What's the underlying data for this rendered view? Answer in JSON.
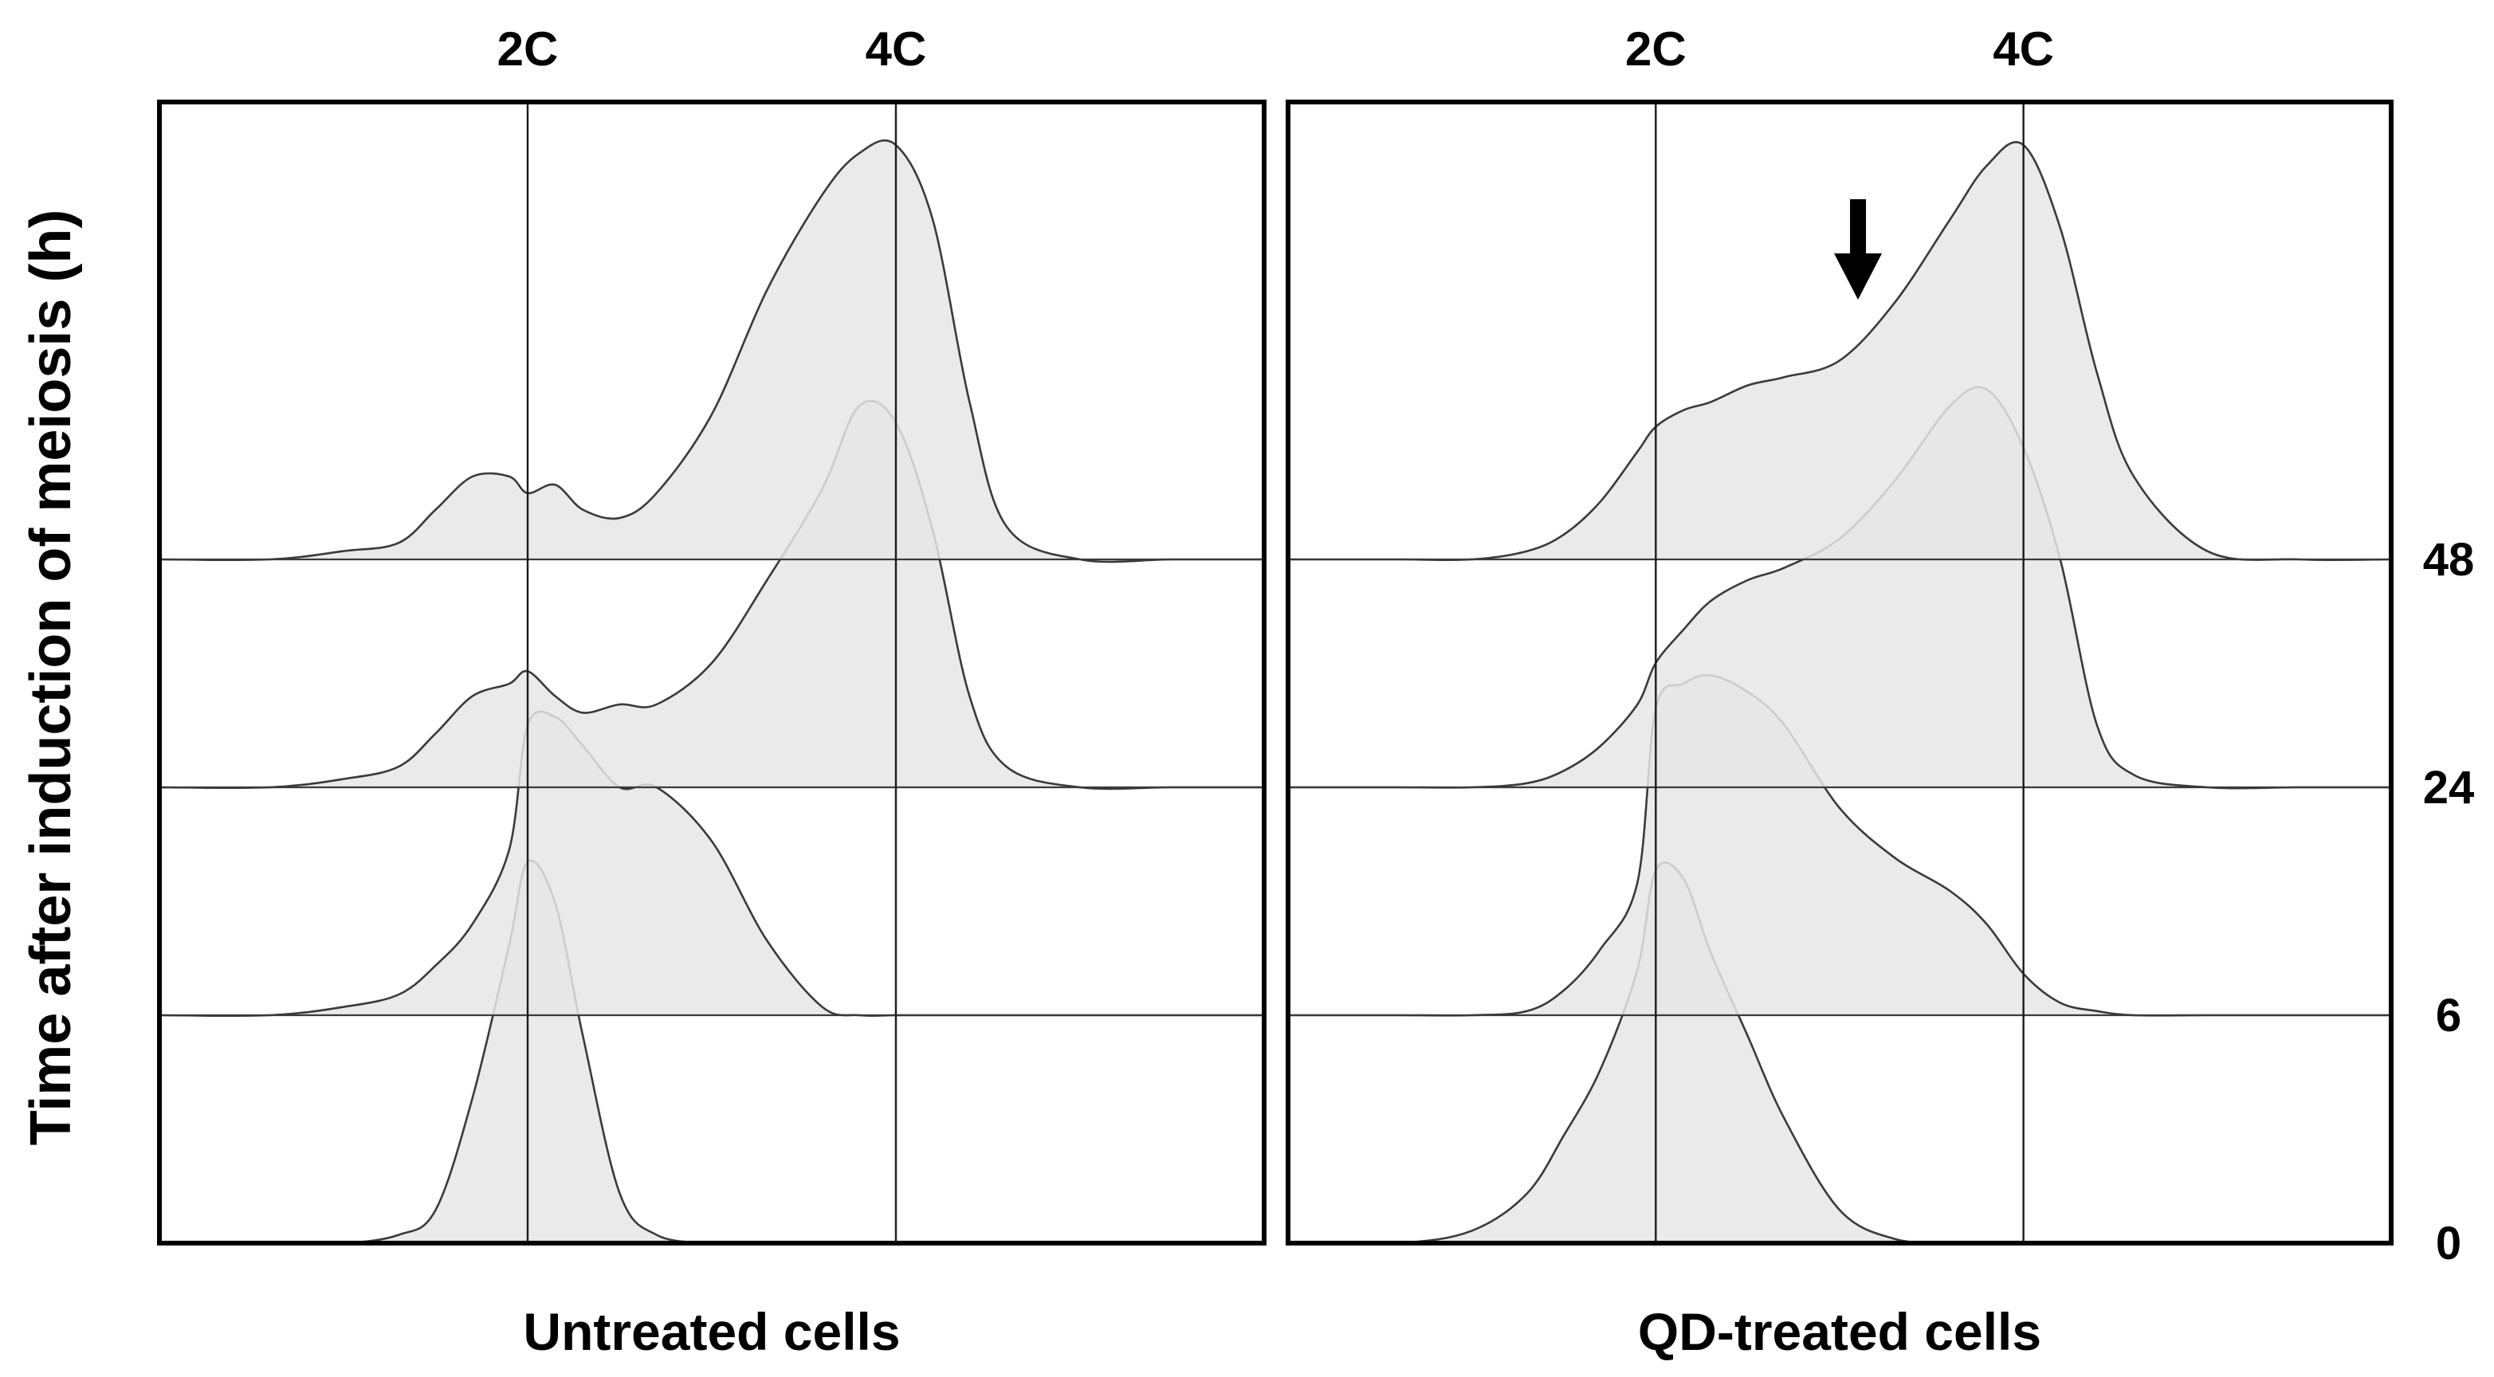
{
  "figure": {
    "y_axis_label": "Time after induction of meiosis (h)",
    "time_labels": [
      "48",
      "24",
      "6",
      "0"
    ],
    "arrow_icon": "down-arrow-icon",
    "fill_color": "#e6e6e6",
    "line_color": "#3a3a3a"
  },
  "chart_data": [
    {
      "type": "area",
      "title": "Untreated cells",
      "xlabel": "Untreated cells",
      "ylabel": "Time after induction of meiosis (h)",
      "reference_lines": [
        {
          "label": "2C",
          "x": 2
        },
        {
          "label": "4C",
          "x": 4
        }
      ],
      "series": [
        {
          "name": "48",
          "x": [
            0,
            0.6,
            1.0,
            1.3,
            1.5,
            1.7,
            1.9,
            2.0,
            2.15,
            2.3,
            2.5,
            2.7,
            3.0,
            3.3,
            3.6,
            3.8,
            4.0,
            4.2,
            4.4,
            4.6,
            5.0,
            5.5,
            6.0
          ],
          "values": [
            0,
            0,
            0.02,
            0.04,
            0.12,
            0.2,
            0.2,
            0.16,
            0.18,
            0.12,
            0.1,
            0.16,
            0.35,
            0.65,
            0.88,
            0.98,
            1.0,
            0.82,
            0.38,
            0.08,
            0,
            0,
            0
          ]
        },
        {
          "name": "24",
          "x": [
            0,
            0.6,
            1.0,
            1.3,
            1.5,
            1.7,
            1.9,
            2.0,
            2.15,
            2.3,
            2.5,
            2.7,
            3.0,
            3.3,
            3.6,
            3.8,
            4.0,
            4.2,
            4.4,
            4.6,
            5.0,
            5.5,
            6.0
          ],
          "values": [
            0,
            0,
            0.02,
            0.05,
            0.13,
            0.22,
            0.25,
            0.28,
            0.22,
            0.18,
            0.2,
            0.2,
            0.3,
            0.5,
            0.72,
            0.92,
            0.88,
            0.62,
            0.22,
            0.05,
            0,
            0,
            0
          ]
        },
        {
          "name": "6",
          "x": [
            0,
            0.6,
            1.0,
            1.3,
            1.5,
            1.7,
            1.9,
            2.0,
            2.15,
            2.3,
            2.5,
            2.7,
            3.0,
            3.3,
            3.6,
            3.8,
            4.0,
            4.2,
            4.4,
            4.6,
            5.0,
            5.5,
            6.0
          ],
          "values": [
            0,
            0,
            0.02,
            0.05,
            0.12,
            0.22,
            0.4,
            0.7,
            0.72,
            0.65,
            0.55,
            0.55,
            0.42,
            0.18,
            0.02,
            0,
            0,
            0,
            0,
            0,
            0,
            0,
            0
          ]
        },
        {
          "name": "0",
          "x": [
            0,
            0.6,
            1.0,
            1.3,
            1.5,
            1.7,
            1.9,
            2.0,
            2.15,
            2.3,
            2.5,
            2.7,
            3.0,
            3.3,
            3.6,
            3.8,
            4.0,
            4.2,
            4.4,
            4.6,
            5.0,
            5.5,
            6.0
          ],
          "values": [
            0,
            0,
            0,
            0.02,
            0.08,
            0.35,
            0.72,
            0.92,
            0.82,
            0.5,
            0.12,
            0.02,
            0,
            0,
            0,
            0,
            0,
            0,
            0,
            0,
            0,
            0,
            0
          ]
        }
      ],
      "ylim": [
        0,
        1
      ]
    },
    {
      "type": "area",
      "title": "QD-treated cells",
      "xlabel": "QD-treated cells",
      "ylabel": "Time after induction of meiosis (h)",
      "reference_lines": [
        {
          "label": "2C",
          "x": 2
        },
        {
          "label": "4C",
          "x": 4
        }
      ],
      "annotations": [
        {
          "type": "arrow",
          "series": "48",
          "x": 3.1,
          "direction": "down"
        }
      ],
      "series": [
        {
          "name": "48",
          "x": [
            0,
            0.6,
            1.0,
            1.3,
            1.5,
            1.7,
            1.9,
            2.0,
            2.15,
            2.3,
            2.5,
            2.7,
            3.0,
            3.3,
            3.6,
            3.8,
            4.0,
            4.2,
            4.4,
            4.6,
            5.0,
            5.5,
            6.0
          ],
          "values": [
            0,
            0,
            0,
            0.02,
            0.06,
            0.14,
            0.26,
            0.32,
            0.36,
            0.38,
            0.42,
            0.44,
            0.48,
            0.62,
            0.82,
            0.95,
            1.0,
            0.8,
            0.45,
            0.2,
            0.02,
            0,
            0
          ]
        },
        {
          "name": "24",
          "x": [
            0,
            0.6,
            1.0,
            1.3,
            1.5,
            1.7,
            1.9,
            2.0,
            2.15,
            2.3,
            2.5,
            2.7,
            3.0,
            3.3,
            3.6,
            3.8,
            4.0,
            4.2,
            4.4,
            4.6,
            5.0,
            5.5,
            6.0
          ],
          "values": [
            0,
            0,
            0,
            0.01,
            0.04,
            0.1,
            0.2,
            0.3,
            0.38,
            0.45,
            0.5,
            0.53,
            0.6,
            0.74,
            0.92,
            0.96,
            0.82,
            0.55,
            0.15,
            0.03,
            0,
            0,
            0
          ]
        },
        {
          "name": "6",
          "x": [
            0,
            0.6,
            1.0,
            1.3,
            1.5,
            1.7,
            1.9,
            2.0,
            2.15,
            2.3,
            2.5,
            2.7,
            3.0,
            3.3,
            3.6,
            3.8,
            4.0,
            4.2,
            4.4,
            4.6,
            5.0,
            5.5,
            6.0
          ],
          "values": [
            0,
            0,
            0,
            0.01,
            0.06,
            0.16,
            0.32,
            0.74,
            0.8,
            0.82,
            0.78,
            0.7,
            0.5,
            0.38,
            0.3,
            0.22,
            0.1,
            0.03,
            0.01,
            0,
            0,
            0,
            0
          ]
        },
        {
          "name": "0",
          "x": [
            0,
            0.6,
            1.0,
            1.3,
            1.5,
            1.7,
            1.9,
            2.0,
            2.15,
            2.3,
            2.5,
            2.7,
            3.0,
            3.3,
            3.6,
            3.8,
            4.0,
            4.2,
            4.4,
            4.6,
            5.0,
            5.5,
            6.0
          ],
          "values": [
            0,
            0,
            0.03,
            0.12,
            0.26,
            0.42,
            0.66,
            0.9,
            0.88,
            0.7,
            0.5,
            0.3,
            0.08,
            0.01,
            0,
            0,
            0,
            0,
            0,
            0,
            0,
            0,
            0
          ]
        }
      ],
      "ylim": [
        0,
        1
      ]
    }
  ]
}
